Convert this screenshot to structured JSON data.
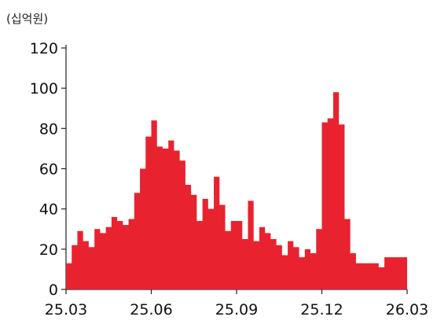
{
  "chart_data": {
    "type": "area",
    "unit_label": "(십억원)",
    "title": "",
    "xlabel": "",
    "ylabel": "",
    "color": "#e8232f",
    "ylim": [
      0,
      120
    ],
    "y_ticks": [
      0,
      20,
      40,
      60,
      80,
      100,
      120
    ],
    "x_ticks": [
      "25.03",
      "25.06",
      "25.09",
      "25.12",
      "26.03"
    ],
    "x_range": [
      "25.03",
      "26.03"
    ],
    "grid": false,
    "legend": "none",
    "series": [
      {
        "points": [
          [
            "25.03",
            13
          ],
          [
            "25.03.1",
            22
          ],
          [
            "25.03.2",
            29
          ],
          [
            "25.03.3",
            24
          ],
          [
            "25.03.4",
            21
          ],
          [
            "25.04",
            30
          ],
          [
            "25.04.1",
            28
          ],
          [
            "25.04.2",
            31
          ],
          [
            "25.04.3",
            36
          ],
          [
            "25.04.4",
            34
          ],
          [
            "25.05",
            32
          ],
          [
            "25.05.1",
            35
          ],
          [
            "25.05.2",
            48
          ],
          [
            "25.05.3",
            60
          ],
          [
            "25.05.4",
            76
          ],
          [
            "25.06",
            84
          ],
          [
            "25.06.1",
            71
          ],
          [
            "25.06.2",
            70
          ],
          [
            "25.06.3",
            74
          ],
          [
            "25.06.4",
            69
          ],
          [
            "25.07",
            64
          ],
          [
            "25.07.1",
            52
          ],
          [
            "25.07.2",
            47
          ],
          [
            "25.07.3",
            34
          ],
          [
            "25.07.4",
            45
          ],
          [
            "25.08",
            40
          ],
          [
            "25.08.1",
            56
          ],
          [
            "25.08.2",
            42
          ],
          [
            "25.08.3",
            29
          ],
          [
            "25.08.4",
            34
          ],
          [
            "25.09",
            34
          ],
          [
            "25.09.1",
            25
          ],
          [
            "25.09.2",
            44
          ],
          [
            "25.09.3",
            24
          ],
          [
            "25.09.4",
            31
          ],
          [
            "25.10",
            28
          ],
          [
            "25.10.1",
            25
          ],
          [
            "25.10.2",
            22
          ],
          [
            "25.10.3",
            17
          ],
          [
            "25.10.4",
            24
          ],
          [
            "25.11",
            21
          ],
          [
            "25.11.1",
            16
          ],
          [
            "25.11.2",
            20
          ],
          [
            "25.11.3",
            18
          ],
          [
            "25.11.4",
            30
          ],
          [
            "25.12",
            83
          ],
          [
            "25.12.1",
            85
          ],
          [
            "25.12.2",
            98
          ],
          [
            "25.12.3",
            82
          ],
          [
            "25.12.4",
            35
          ],
          [
            "26.01",
            18
          ],
          [
            "26.01.1",
            13
          ],
          [
            "26.02",
            11
          ],
          [
            "26.02.1",
            16
          ],
          [
            "26.03",
            13
          ]
        ]
      }
    ]
  }
}
